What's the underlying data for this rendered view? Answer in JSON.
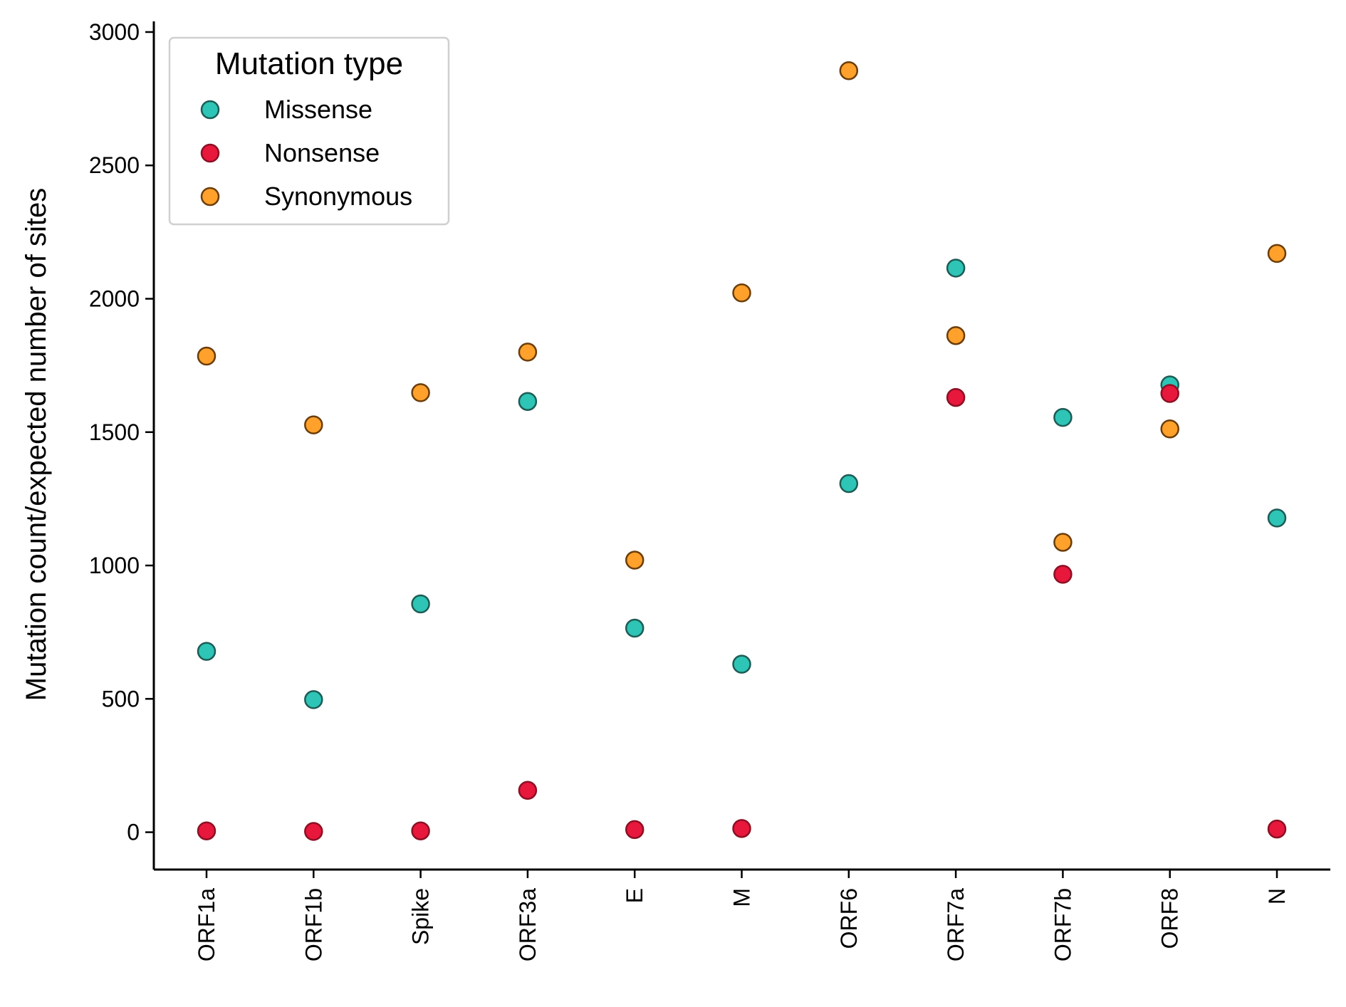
{
  "chart_data": {
    "type": "scatter",
    "title": "",
    "xlabel": "",
    "ylabel": "Mutation count/expected number of sites",
    "categories": [
      "ORF1a",
      "ORF1b",
      "Spike",
      "ORF3a",
      "E",
      "M",
      "ORF6",
      "ORF7a",
      "ORF7b",
      "ORF8",
      "N"
    ],
    "ylim": [
      -140,
      3040
    ],
    "yticks": [
      0,
      500,
      1000,
      1500,
      2000,
      2500,
      3000
    ],
    "grid": false,
    "legend": {
      "title": "Mutation type",
      "placement": "top-left"
    },
    "series": [
      {
        "name": "Missense",
        "color": "#2ec4b6",
        "edge": "#1d5c55",
        "values": [
          678,
          497,
          856,
          1615,
          765,
          630,
          1307,
          2115,
          1555,
          1677,
          1178
        ]
      },
      {
        "name": "Nonsense",
        "color": "#e8173c",
        "edge": "#8c1024",
        "values": [
          5,
          3,
          5,
          157,
          10,
          14,
          null,
          1630,
          967,
          1645,
          12
        ]
      },
      {
        "name": "Synonymous",
        "color": "#ffa12b",
        "edge": "#6b3d0a",
        "values": [
          1785,
          1527,
          1648,
          1800,
          1020,
          2022,
          2855,
          1862,
          1087,
          1512,
          2170
        ]
      }
    ]
  }
}
